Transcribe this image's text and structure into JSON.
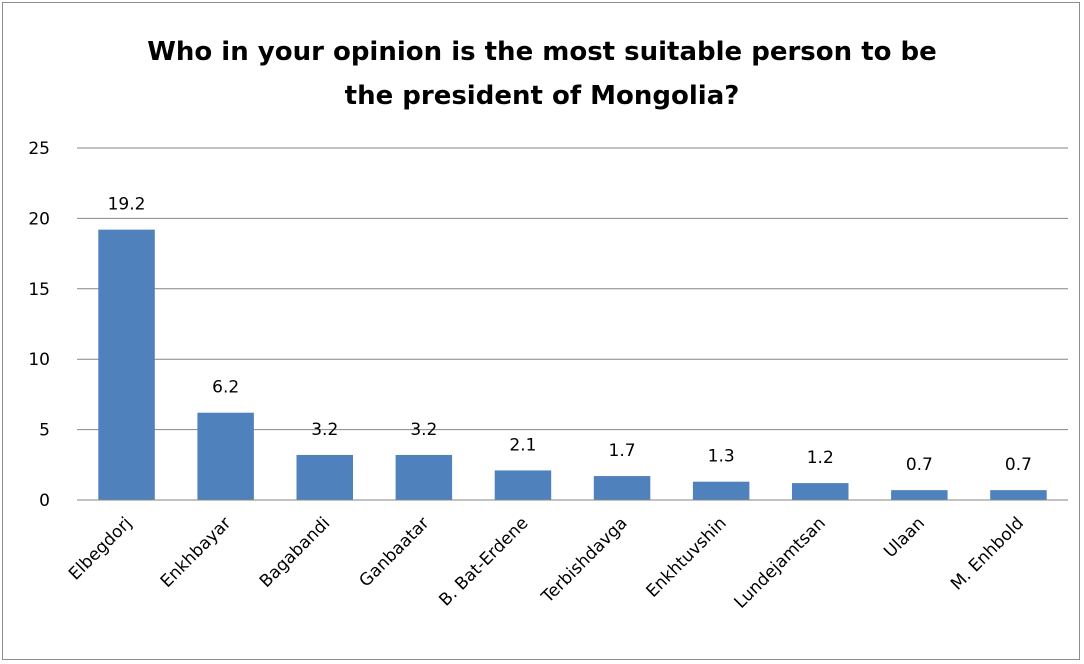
{
  "chart_data": {
    "type": "bar",
    "title": "Who in your opinion is the most suitable person to be the president of Mongolia?",
    "title_lines": [
      "Who in your opinion is the most suitable person to be",
      "the president of Mongolia?"
    ],
    "categories": [
      "Elbegdorj",
      "Enkhbayar",
      "Bagabandi",
      "Ganbaatar",
      "B. Bat-Erdene",
      "Terbishdavga",
      "Enkhtuvshin",
      "Lundejamtsan",
      "Ulaan",
      "M. Enhbold"
    ],
    "values": [
      19.2,
      6.2,
      3.2,
      3.2,
      2.1,
      1.7,
      1.3,
      1.2,
      0.7,
      0.7
    ],
    "data_labels": [
      "19.2",
      "6.2",
      "3.2",
      "3.2",
      "2.1",
      "1.7",
      "1.3",
      "1.2",
      "0.7",
      "0.7"
    ],
    "y_ticks": [
      "0",
      "5",
      "10",
      "15",
      "20",
      "25"
    ],
    "ylim": [
      0,
      25
    ],
    "xlabel": "",
    "ylabel": "",
    "grid": true,
    "legend": "none",
    "colors": {
      "bar": "#4f81bd",
      "gridline": "#868686",
      "axis": "#868686"
    }
  }
}
